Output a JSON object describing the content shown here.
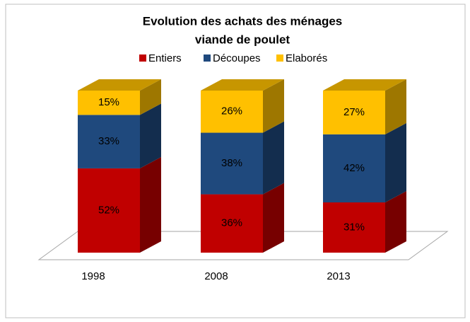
{
  "chart_data": {
    "type": "bar3d_stacked",
    "title": "Evolution des achats des ménages",
    "subtitle": "viande de poulet",
    "categories": [
      "1998",
      "2008",
      "2013"
    ],
    "ylim": [
      0,
      100
    ],
    "series": [
      {
        "name": "Entiers",
        "color": "#c00000",
        "values": [
          52,
          36,
          31
        ],
        "value_labels": [
          "52%",
          "36%",
          "31%"
        ]
      },
      {
        "name": "Découpes",
        "color": "#1f497d",
        "values": [
          33,
          38,
          42
        ],
        "value_labels": [
          "33%",
          "38%",
          "42%"
        ]
      },
      {
        "name": "Elaborés",
        "color": "#ffc000",
        "values": [
          15,
          26,
          27
        ],
        "value_labels": [
          "15%",
          "26%",
          "27%"
        ]
      }
    ]
  }
}
